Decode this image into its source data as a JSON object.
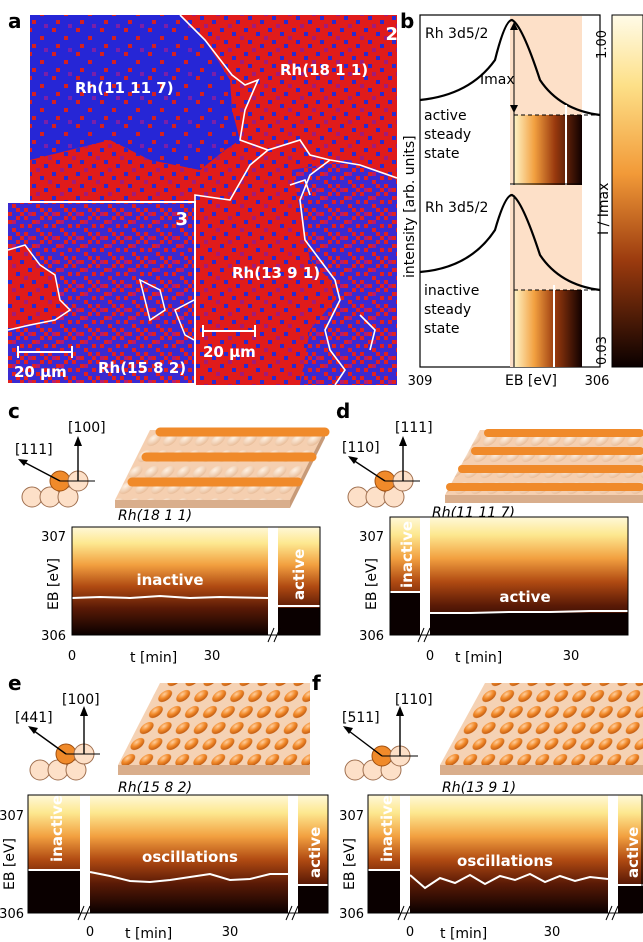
{
  "panel_a": {
    "label": "a",
    "region_number": "2",
    "regions": [
      "Rh(11 11 7)",
      "Rh(18 1 1)",
      "Rh(13 9 1)"
    ],
    "scale_bar": "20 µm",
    "inset": {
      "region_number": "3",
      "region": "Rh(15 8 2)",
      "scale_bar": "20 µm"
    }
  },
  "panel_b": {
    "label": "b",
    "peak_top": "Rh 3d5/2",
    "peak_bottom": "Rh 3d5/2",
    "imax": "Imax",
    "state_top": [
      "active",
      "steady",
      "state"
    ],
    "state_bottom": [
      "inactive",
      "steady",
      "state"
    ],
    "ylabel": "intensity [arb. units]",
    "xlabel": "EB [eV]",
    "xticks": [
      "309",
      "306"
    ],
    "colorbar_label": "I / Imax",
    "colorbar_ticks": [
      "1.00",
      "0.03"
    ]
  },
  "panels": [
    {
      "label": "c",
      "dir_a": "[111]",
      "dir_b": "[100]",
      "surface": "Rh(18 1 1)",
      "segments": [
        "inactive",
        "active"
      ]
    },
    {
      "label": "d",
      "dir_a": "[110]",
      "dir_b": "[111]",
      "surface": "Rh(11 11 7)",
      "segments": [
        "inactive",
        "active"
      ]
    },
    {
      "label": "e",
      "dir_a": "[441]",
      "dir_b": "[100]",
      "surface": "Rh(15 8 2)",
      "segments": [
        "inactive",
        "oscillations",
        "active"
      ]
    },
    {
      "label": "f",
      "dir_a": "[511]",
      "dir_b": "[110]",
      "surface": "Rh(13 9 1)",
      "segments": [
        "inactive",
        "oscillations",
        "active"
      ]
    }
  ],
  "time_axis": {
    "label": "t [min]",
    "ticks": [
      "0",
      "30"
    ]
  },
  "energy_axis": {
    "label": "EB [eV]",
    "ticks": [
      "307",
      "306"
    ]
  },
  "colors": {
    "red": "#e01b1b",
    "blue": "#2323d8",
    "peach": "#fde0c8",
    "orange": "#f08a2a"
  }
}
